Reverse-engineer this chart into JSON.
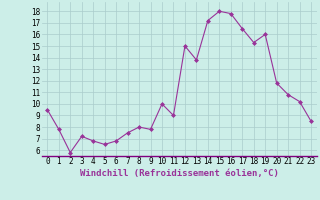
{
  "x": [
    0,
    1,
    2,
    3,
    4,
    5,
    6,
    7,
    8,
    9,
    10,
    11,
    12,
    13,
    14,
    15,
    16,
    17,
    18,
    19,
    20,
    21,
    22,
    23
  ],
  "y": [
    9.5,
    7.8,
    5.8,
    7.2,
    6.8,
    6.5,
    6.8,
    7.5,
    8.0,
    7.8,
    10.0,
    9.0,
    15.0,
    13.8,
    17.2,
    18.0,
    17.8,
    16.5,
    15.3,
    16.0,
    11.8,
    10.8,
    10.2,
    8.5
  ],
  "line_color": "#993399",
  "marker": "D",
  "marker_size": 2,
  "linewidth": 0.8,
  "xlabel": "Windchill (Refroidissement éolien,°C)",
  "xlabel_fontsize": 6.5,
  "ylabel_ticks": [
    6,
    7,
    8,
    9,
    10,
    11,
    12,
    13,
    14,
    15,
    16,
    17,
    18
  ],
  "ylim": [
    5.5,
    18.8
  ],
  "xlim": [
    -0.5,
    23.5
  ],
  "bg_color": "#cceee8",
  "grid_color": "#aacccc",
  "tick_fontsize": 5.5
}
